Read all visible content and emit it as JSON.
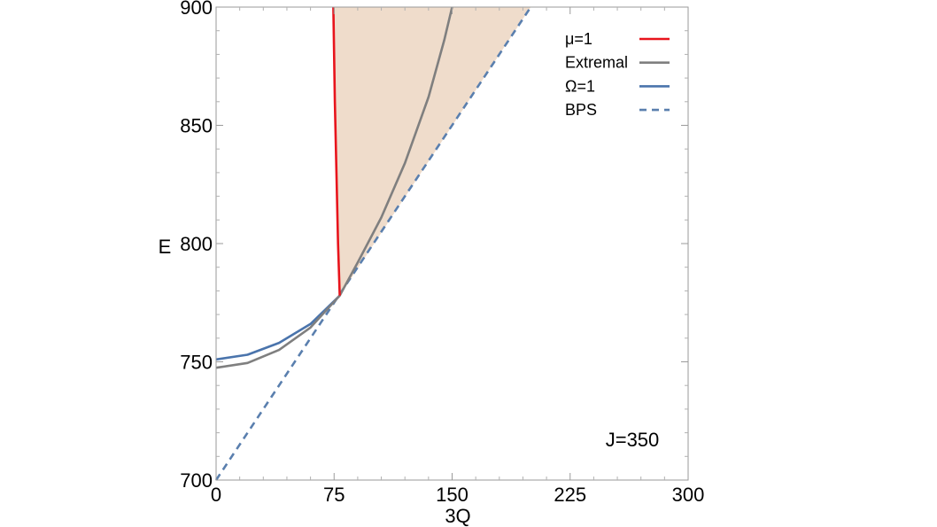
{
  "chart_data": {
    "type": "line",
    "xlabel": "3Q",
    "ylabel": "E",
    "xlim": [
      0,
      300
    ],
    "ylim": [
      700,
      900
    ],
    "xticks": [
      0,
      75,
      150,
      225,
      300
    ],
    "yticks": [
      700,
      750,
      800,
      850,
      900
    ],
    "grid": false,
    "legend_position": "top-right",
    "annotation": "J=350",
    "series": [
      {
        "name": "μ=1",
        "color": "#e8141c",
        "style": "solid",
        "points": [
          [
            74.5,
            900
          ],
          [
            75.5,
            860
          ],
          [
            76.5,
            830
          ],
          [
            77.5,
            800
          ],
          [
            78.6,
            778
          ]
        ]
      },
      {
        "name": "Extremal",
        "color": "#7f7f7f",
        "style": "solid",
        "points": [
          [
            0,
            747.5
          ],
          [
            20,
            749.5
          ],
          [
            40,
            755
          ],
          [
            60,
            764.5
          ],
          [
            78.6,
            778
          ],
          [
            90,
            792
          ],
          [
            105,
            811
          ],
          [
            120,
            834
          ],
          [
            135,
            862
          ],
          [
            145,
            886
          ],
          [
            150,
            900
          ]
        ]
      },
      {
        "name": "Ω=1",
        "color": "#4a74ac",
        "style": "solid",
        "points": [
          [
            0,
            751
          ],
          [
            20,
            753
          ],
          [
            40,
            758
          ],
          [
            60,
            766
          ],
          [
            78.6,
            778
          ]
        ]
      },
      {
        "name": "BPS",
        "color": "#5a7fae",
        "style": "dashed",
        "points": [
          [
            0,
            700
          ],
          [
            200,
            900
          ]
        ]
      }
    ],
    "shaded_region": {
      "fill": "#efdccb",
      "boundary": [
        [
          74.5,
          900
        ],
        [
          75.5,
          860
        ],
        [
          76.5,
          830
        ],
        [
          77.5,
          800
        ],
        [
          78.6,
          778
        ],
        [
          200,
          900
        ]
      ]
    }
  }
}
